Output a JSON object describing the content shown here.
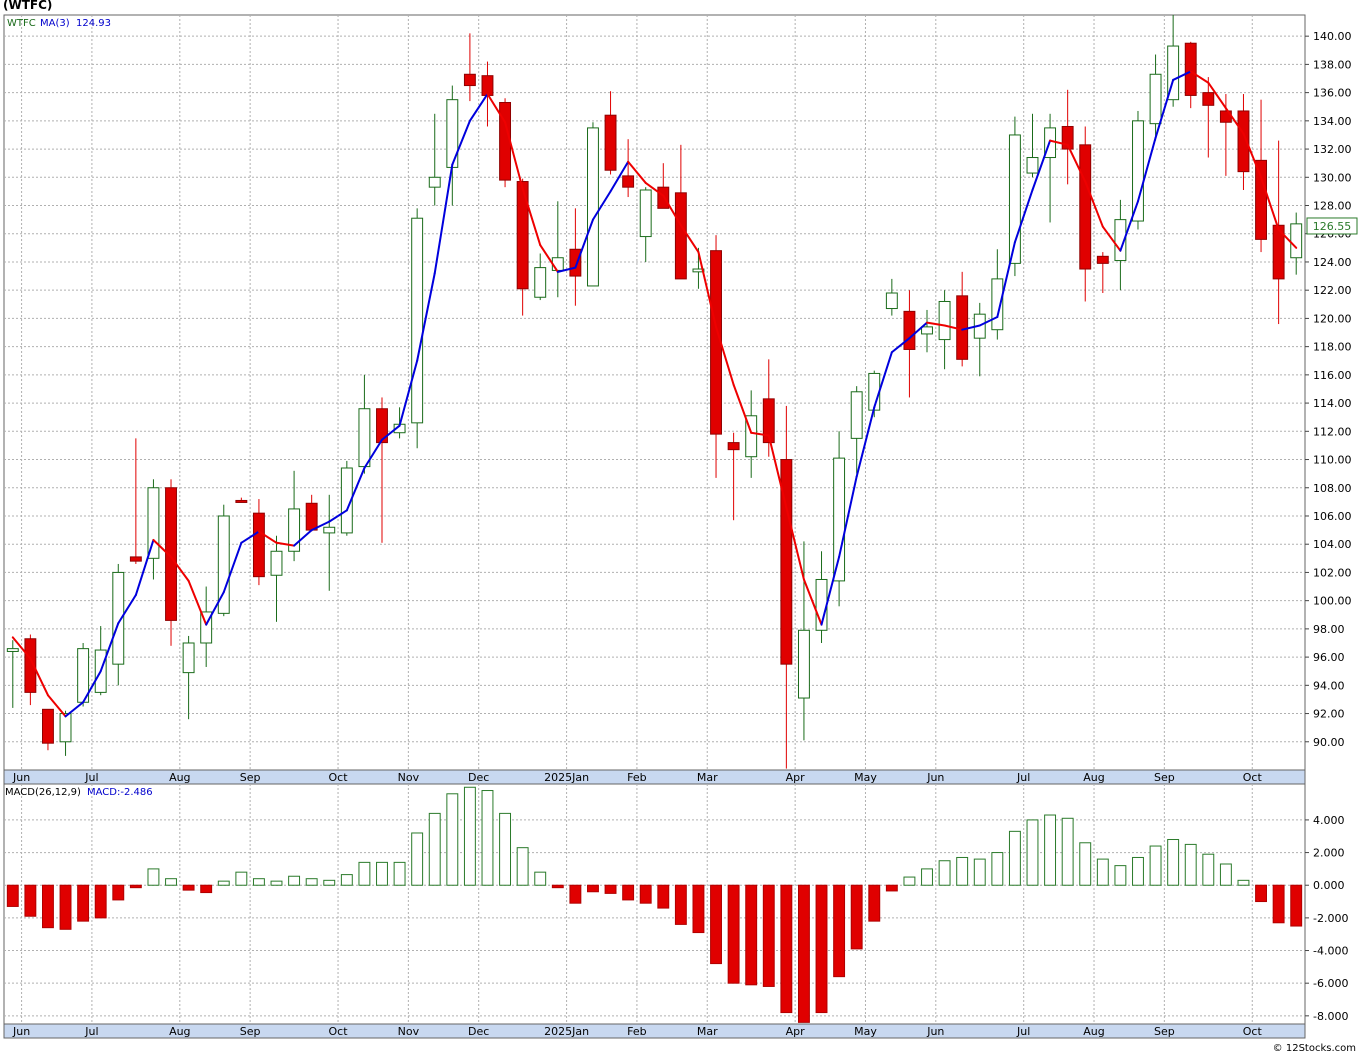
{
  "header": {
    "symbol_title": "(WTFC)"
  },
  "footer": {
    "copyright": "© 12Stocks.com"
  },
  "colors": {
    "up": "#1a6b1a",
    "down": "#e00000",
    "ma_up": "#0000dd",
    "ma_down": "#ee0000",
    "grid": "#b0b0b0",
    "axis_band": "#c8d8f0",
    "macd_up": "#2a7a2a",
    "macd_down": "#e00000"
  },
  "chart_data": [
    {
      "type": "candlestick",
      "legend": {
        "symbol": "WTFC",
        "ma_label": "MA(3)",
        "ma_value": "124.93"
      },
      "last_price_label": "126.55",
      "ylim": [
        88,
        141.5
      ],
      "y_ticks": [
        90,
        92,
        94,
        96,
        98,
        100,
        102,
        104,
        106,
        108,
        110,
        112,
        114,
        116,
        118,
        120,
        122,
        124,
        126,
        128,
        130,
        132,
        134,
        136,
        138,
        140
      ],
      "y_tick_labels": [
        "90.00",
        "92.00",
        "94.00",
        "96.00",
        "98.00",
        "100.00",
        "102.00",
        "104.00",
        "106.00",
        "108.00",
        "110.00",
        "112.00",
        "114.00",
        "116.00",
        "118.00",
        "120.00",
        "122.00",
        "124.00",
        "126.00",
        "128.00",
        "130.00",
        "132.00",
        "134.00",
        "136.00",
        "138.00",
        "140.00"
      ],
      "x_ticks": [
        {
          "label": "Jun",
          "i": 1
        },
        {
          "label": "Jul",
          "i": 5
        },
        {
          "label": "Aug",
          "i": 10
        },
        {
          "label": "Sep",
          "i": 14
        },
        {
          "label": "Oct",
          "i": 19
        },
        {
          "label": "Nov",
          "i": 23
        },
        {
          "label": "Dec",
          "i": 27
        },
        {
          "label": "2025Jan",
          "i": 32
        },
        {
          "label": "Feb",
          "i": 36
        },
        {
          "label": "Mar",
          "i": 40
        },
        {
          "label": "Apr",
          "i": 45
        },
        {
          "label": "May",
          "i": 49
        },
        {
          "label": "Jun",
          "i": 53
        },
        {
          "label": "Jul",
          "i": 58
        },
        {
          "label": "Aug",
          "i": 62
        },
        {
          "label": "Sep",
          "i": 66
        },
        {
          "label": "Oct",
          "i": 71
        }
      ],
      "ohlc": [
        [
          96.4,
          97.2,
          92.4,
          96.6
        ],
        [
          97.3,
          97.6,
          92.6,
          93.5
        ],
        [
          92.3,
          92.3,
          89.4,
          89.9
        ],
        [
          90.0,
          92.2,
          89.0,
          92.0
        ],
        [
          92.8,
          97.0,
          92.5,
          96.6
        ],
        [
          93.5,
          98.2,
          93.3,
          96.5
        ],
        [
          95.5,
          102.6,
          94.0,
          102.0
        ],
        [
          103.1,
          111.5,
          102.6,
          102.8
        ],
        [
          103.0,
          108.6,
          101.5,
          108.0
        ],
        [
          108.0,
          108.6,
          96.8,
          98.6
        ],
        [
          94.9,
          97.5,
          91.6,
          97.0
        ],
        [
          97.0,
          101.0,
          95.3,
          99.2
        ],
        [
          99.1,
          106.8,
          98.9,
          106.0
        ],
        [
          107.1,
          107.3,
          107.0,
          107.0
        ],
        [
          106.2,
          107.2,
          101.1,
          101.7
        ],
        [
          101.8,
          104.6,
          98.5,
          103.5
        ],
        [
          103.5,
          109.2,
          102.8,
          106.5
        ],
        [
          106.9,
          107.5,
          104.9,
          105.0
        ],
        [
          104.8,
          107.5,
          100.7,
          105.2
        ],
        [
          104.8,
          109.9,
          104.6,
          109.4
        ],
        [
          109.5,
          116.0,
          109.0,
          113.6
        ],
        [
          113.6,
          114.4,
          104.1,
          111.2
        ],
        [
          111.9,
          113.7,
          111.5,
          112.5
        ],
        [
          112.6,
          127.8,
          110.8,
          127.1
        ],
        [
          129.3,
          134.5,
          128.0,
          130.0
        ],
        [
          130.7,
          136.5,
          128.0,
          135.5
        ],
        [
          137.3,
          140.2,
          135.4,
          136.5
        ],
        [
          137.2,
          138.2,
          133.6,
          135.8
        ],
        [
          135.3,
          135.6,
          129.3,
          129.8
        ],
        [
          129.7,
          129.9,
          120.2,
          122.1
        ],
        [
          121.5,
          124.6,
          121.3,
          123.6
        ],
        [
          123.4,
          128.3,
          121.5,
          124.3
        ],
        [
          124.9,
          127.8,
          120.9,
          123.0
        ],
        [
          122.3,
          133.9,
          122.3,
          133.5
        ],
        [
          134.4,
          136.1,
          130.2,
          130.5
        ],
        [
          130.1,
          132.7,
          128.6,
          129.3
        ],
        [
          125.8,
          129.3,
          124.0,
          129.1
        ],
        [
          129.3,
          131.0,
          127.9,
          127.8
        ],
        [
          128.9,
          132.3,
          122.8,
          122.8
        ],
        [
          123.3,
          125.0,
          122.1,
          123.5
        ],
        [
          124.8,
          125.9,
          108.7,
          111.8
        ],
        [
          111.2,
          111.9,
          105.7,
          110.7
        ],
        [
          110.2,
          114.9,
          108.7,
          113.1
        ],
        [
          114.3,
          117.1,
          110.2,
          111.2
        ],
        [
          110.0,
          113.8,
          88.1,
          95.5
        ],
        [
          93.1,
          104.2,
          90.1,
          97.9
        ],
        [
          97.9,
          103.5,
          97.0,
          101.5
        ],
        [
          101.4,
          112.0,
          99.6,
          110.1
        ],
        [
          111.5,
          115.2,
          109.0,
          114.8
        ],
        [
          113.5,
          116.3,
          113.0,
          116.1
        ],
        [
          120.7,
          122.8,
          120.2,
          121.8
        ],
        [
          120.5,
          122.0,
          114.4,
          117.8
        ],
        [
          118.9,
          120.6,
          117.6,
          119.4
        ],
        [
          118.5,
          122.0,
          116.4,
          121.2
        ],
        [
          121.6,
          123.3,
          116.6,
          117.1
        ],
        [
          118.6,
          121.1,
          115.9,
          120.3
        ],
        [
          119.2,
          124.9,
          118.5,
          122.8
        ],
        [
          123.9,
          134.3,
          123.0,
          133.0
        ],
        [
          130.3,
          134.5,
          130.0,
          131.4
        ],
        [
          131.4,
          134.5,
          126.8,
          133.5
        ],
        [
          133.6,
          136.2,
          129.5,
          132.0
        ],
        [
          132.3,
          133.6,
          121.2,
          123.5
        ],
        [
          124.4,
          124.7,
          121.8,
          123.9
        ],
        [
          124.1,
          128.4,
          122.0,
          127.0
        ],
        [
          126.9,
          134.7,
          126.3,
          134.0
        ],
        [
          133.8,
          138.7,
          132.6,
          137.3
        ],
        [
          135.5,
          141.5,
          135.0,
          139.3
        ],
        [
          139.5,
          139.6,
          134.9,
          135.8
        ],
        [
          136.0,
          137.1,
          131.4,
          135.1
        ],
        [
          134.7,
          135.9,
          130.1,
          133.9
        ],
        [
          134.7,
          135.9,
          129.1,
          130.4
        ],
        [
          131.2,
          135.5,
          124.7,
          125.6
        ],
        [
          126.6,
          132.6,
          119.6,
          122.8
        ],
        [
          124.3,
          127.5,
          123.1,
          126.7
        ]
      ],
      "ma3": [
        97.4,
        95.9,
        93.3,
        91.8,
        92.8,
        95.0,
        98.4,
        100.4,
        104.3,
        103.1,
        101.4,
        98.3,
        100.6,
        104.1,
        104.9,
        104.1,
        103.9,
        105.0,
        105.6,
        106.4,
        109.4,
        111.4,
        112.4,
        117.0,
        123.2,
        130.9,
        134.0,
        135.9,
        133.9,
        129.2,
        125.2,
        123.3,
        123.6,
        127.0,
        129.0,
        131.1,
        129.6,
        128.7,
        126.6,
        124.7,
        119.4,
        115.3,
        111.9,
        111.7,
        106.6,
        101.5,
        98.3,
        103.1,
        108.8,
        113.7,
        117.6,
        118.6,
        119.7,
        119.5,
        119.2,
        119.5,
        120.1,
        125.4,
        129.1,
        132.6,
        132.3,
        129.7,
        126.5,
        124.8,
        128.3,
        132.8,
        136.9,
        137.5,
        136.7,
        134.9,
        133.1,
        130.0,
        126.3,
        125.0
      ]
    },
    {
      "type": "bar",
      "legend": {
        "indicator": "MACD(26,12,9)",
        "value_label": "MACD:-2.486"
      },
      "ylim": [
        -8.5,
        6.2
      ],
      "y_ticks": [
        -8,
        -6,
        -4,
        -2,
        0,
        2,
        4
      ],
      "y_tick_labels": [
        "-8.000",
        "-6.000",
        "-4.000",
        "-2.000",
        "0.000",
        "2.000",
        "4.000"
      ],
      "values": [
        -1.3,
        -1.9,
        -2.6,
        -2.7,
        -2.2,
        -2.0,
        -0.9,
        -0.15,
        1.0,
        0.4,
        -0.3,
        -0.45,
        0.25,
        0.8,
        0.4,
        0.25,
        0.55,
        0.4,
        0.3,
        0.65,
        1.4,
        1.4,
        1.4,
        3.2,
        4.4,
        5.6,
        6.0,
        5.8,
        4.4,
        2.3,
        0.8,
        -0.15,
        -1.1,
        -0.4,
        -0.5,
        -0.9,
        -1.1,
        -1.4,
        -2.4,
        -2.9,
        -4.8,
        -6.0,
        -6.1,
        -6.2,
        -7.8,
        -8.4,
        -7.8,
        -5.6,
        -3.9,
        -2.2,
        -0.35,
        0.5,
        1.0,
        1.5,
        1.7,
        1.6,
        2.0,
        3.3,
        4.0,
        4.3,
        4.1,
        2.6,
        1.6,
        1.2,
        1.7,
        2.4,
        2.8,
        2.5,
        1.9,
        1.3,
        0.3,
        -1.0,
        -2.3,
        -2.5
      ]
    }
  ]
}
